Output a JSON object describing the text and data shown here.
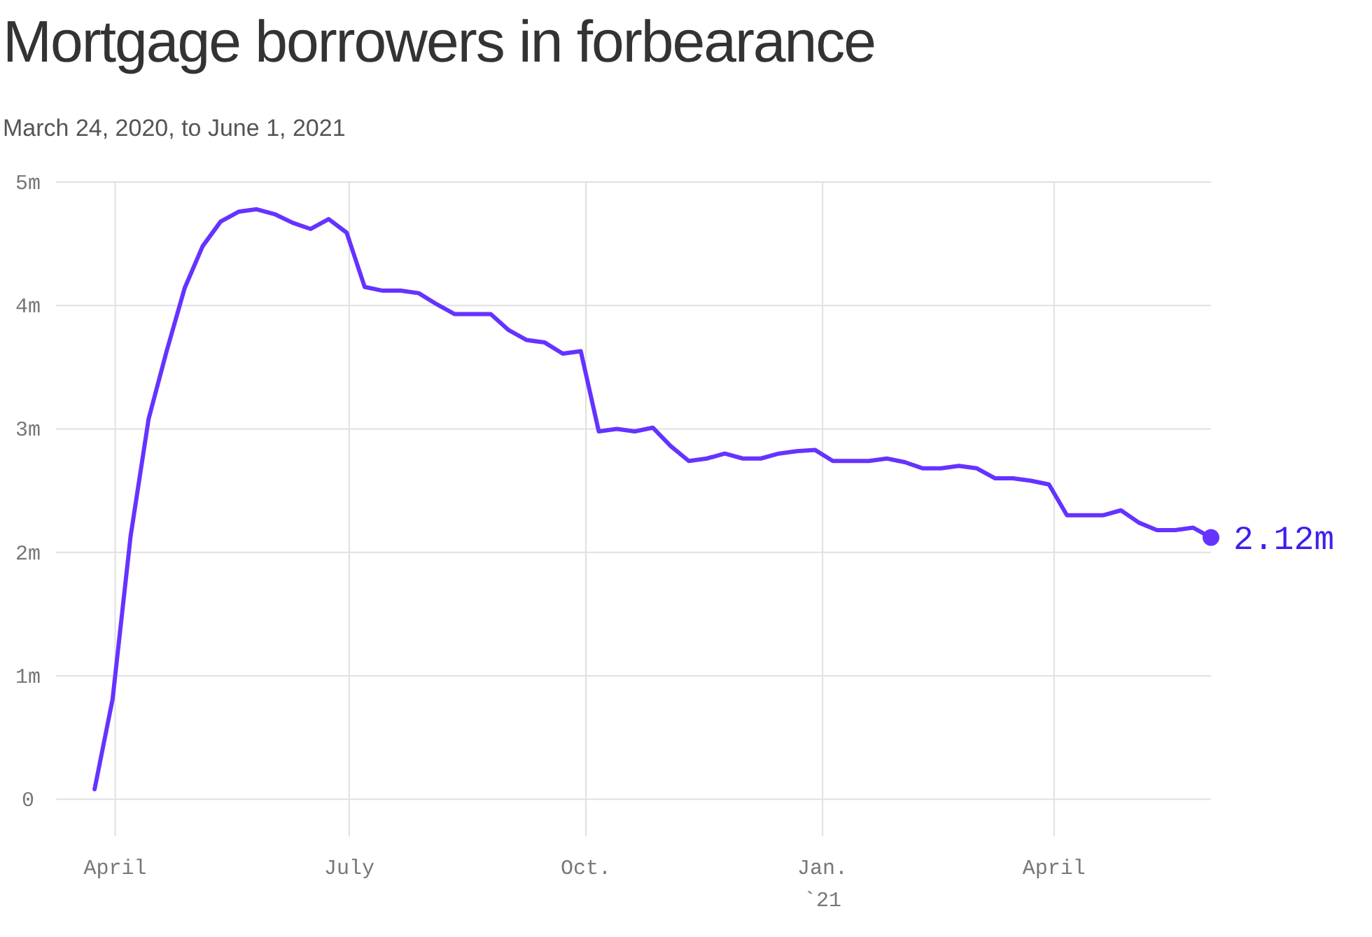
{
  "chart_data": {
    "type": "line",
    "title": "Mortgage borrowers in forbearance",
    "subtitle": "March 24, 2020, to June 1, 2021",
    "x": [
      "2020-03-24",
      "2020-03-31",
      "2020-04-07",
      "2020-04-14",
      "2020-04-21",
      "2020-04-28",
      "2020-05-05",
      "2020-05-12",
      "2020-05-19",
      "2020-05-26",
      "2020-06-02",
      "2020-06-09",
      "2020-06-16",
      "2020-06-23",
      "2020-06-30",
      "2020-07-07",
      "2020-07-14",
      "2020-07-21",
      "2020-07-28",
      "2020-08-04",
      "2020-08-11",
      "2020-08-18",
      "2020-08-25",
      "2020-09-01",
      "2020-09-08",
      "2020-09-15",
      "2020-09-22",
      "2020-09-29",
      "2020-10-06",
      "2020-10-13",
      "2020-10-20",
      "2020-10-27",
      "2020-11-03",
      "2020-11-10",
      "2020-11-17",
      "2020-11-24",
      "2020-12-01",
      "2020-12-08",
      "2020-12-15",
      "2020-12-22",
      "2020-12-29",
      "2021-01-05",
      "2021-01-12",
      "2021-01-19",
      "2021-01-26",
      "2021-02-02",
      "2021-02-09",
      "2021-02-16",
      "2021-02-23",
      "2021-03-02",
      "2021-03-09",
      "2021-03-16",
      "2021-03-23",
      "2021-03-30",
      "2021-04-06",
      "2021-04-13",
      "2021-04-20",
      "2021-04-27",
      "2021-05-04",
      "2021-05-11",
      "2021-05-18",
      "2021-05-25",
      "2021-06-01"
    ],
    "series": [
      {
        "color": "#6533ff",
        "values": [
          0.08,
          0.81,
          2.13,
          3.08,
          3.63,
          4.14,
          4.48,
          4.68,
          4.76,
          4.78,
          4.74,
          4.67,
          4.62,
          4.7,
          4.59,
          4.15,
          4.12,
          4.12,
          4.1,
          4.01,
          3.93,
          3.93,
          3.93,
          3.8,
          3.72,
          3.7,
          3.61,
          3.63,
          2.98,
          3.0,
          2.98,
          3.01,
          2.86,
          2.74,
          2.76,
          2.8,
          2.76,
          2.76,
          2.8,
          2.82,
          2.83,
          2.74,
          2.74,
          2.74,
          2.76,
          2.73,
          2.68,
          2.68,
          2.7,
          2.68,
          2.6,
          2.6,
          2.58,
          2.55,
          2.3,
          2.3,
          2.3,
          2.34,
          2.24,
          2.18,
          2.18,
          2.2,
          2.12
        ]
      }
    ],
    "xlim": [
      "2020-03-09",
      "2021-06-01"
    ],
    "xticks": [
      {
        "value": "2020-04-01",
        "label": "April"
      },
      {
        "value": "2020-07-01",
        "label": "July"
      },
      {
        "value": "2020-10-01",
        "label": "Oct."
      },
      {
        "value": "2021-01-01",
        "label": "Jan.\n`21"
      },
      {
        "value": "2021-04-01",
        "label": "April"
      }
    ],
    "ylim": [
      -0.3,
      5
    ],
    "yticks": [
      0,
      {
        "value": 1,
        "label": "1m"
      },
      {
        "value": 2,
        "label": "2m"
      },
      {
        "value": 3,
        "label": "3m"
      },
      {
        "value": 4,
        "label": "4m"
      },
      {
        "value": 5,
        "label": "5m"
      }
    ],
    "grid": true,
    "marker": "none",
    "line_style": "solid",
    "annotations": [
      {
        "text": "2.12m",
        "x": "2021-06-01",
        "y": 2.12
      }
    ]
  }
}
